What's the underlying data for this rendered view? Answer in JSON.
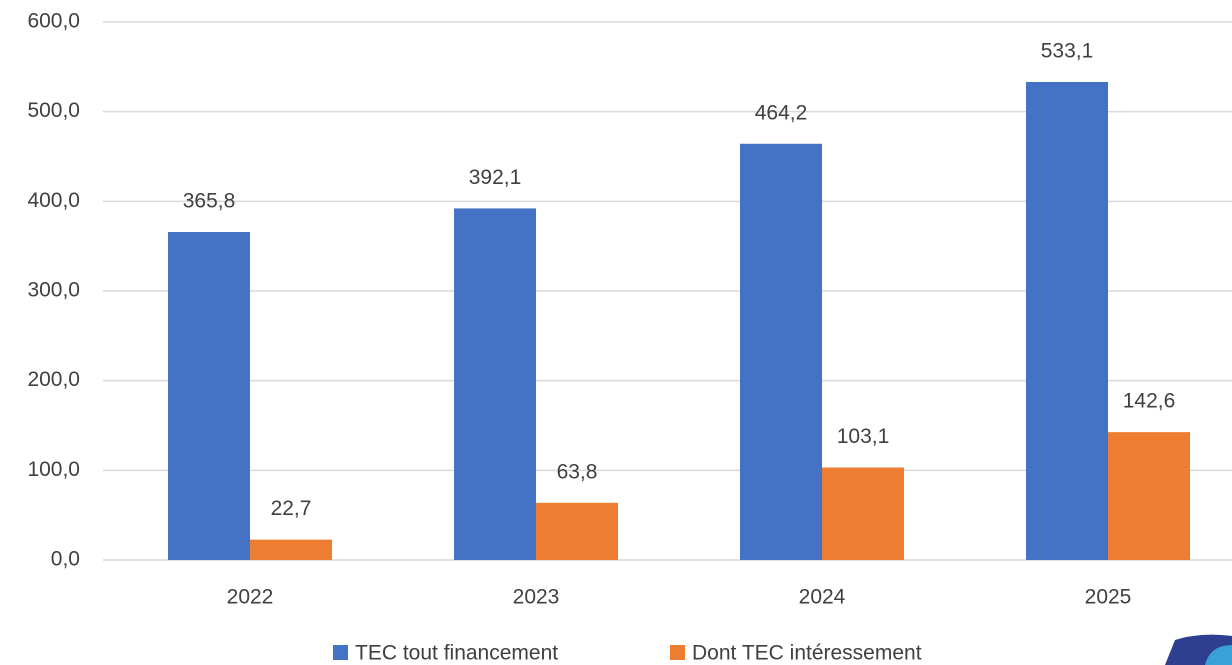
{
  "chart_data": {
    "type": "bar",
    "categories": [
      "2022",
      "2023",
      "2024",
      "2025"
    ],
    "series": [
      {
        "name": "TEC tout financement",
        "color": "#4472c4",
        "values": [
          365.8,
          392.1,
          464.2,
          533.1
        ],
        "value_labels": [
          "365,8",
          "392,1",
          "464,2",
          "533,1"
        ]
      },
      {
        "name": "Dont TEC intéressement",
        "color": "#ed7d31",
        "values": [
          22.7,
          63.8,
          103.1,
          142.6
        ],
        "value_labels": [
          "22,7",
          "63,8",
          "103,1",
          "142,6"
        ]
      }
    ],
    "ylim": [
      0,
      600
    ],
    "yticks": [
      {
        "value": 0,
        "label": "0,0"
      },
      {
        "value": 100,
        "label": "100,0"
      },
      {
        "value": 200,
        "label": "200,0"
      },
      {
        "value": 300,
        "label": "300,0"
      },
      {
        "value": 400,
        "label": "400,0"
      },
      {
        "value": 500,
        "label": "500,0"
      },
      {
        "value": 600,
        "label": "600,0"
      }
    ],
    "grid": true,
    "legend": "bottom"
  }
}
